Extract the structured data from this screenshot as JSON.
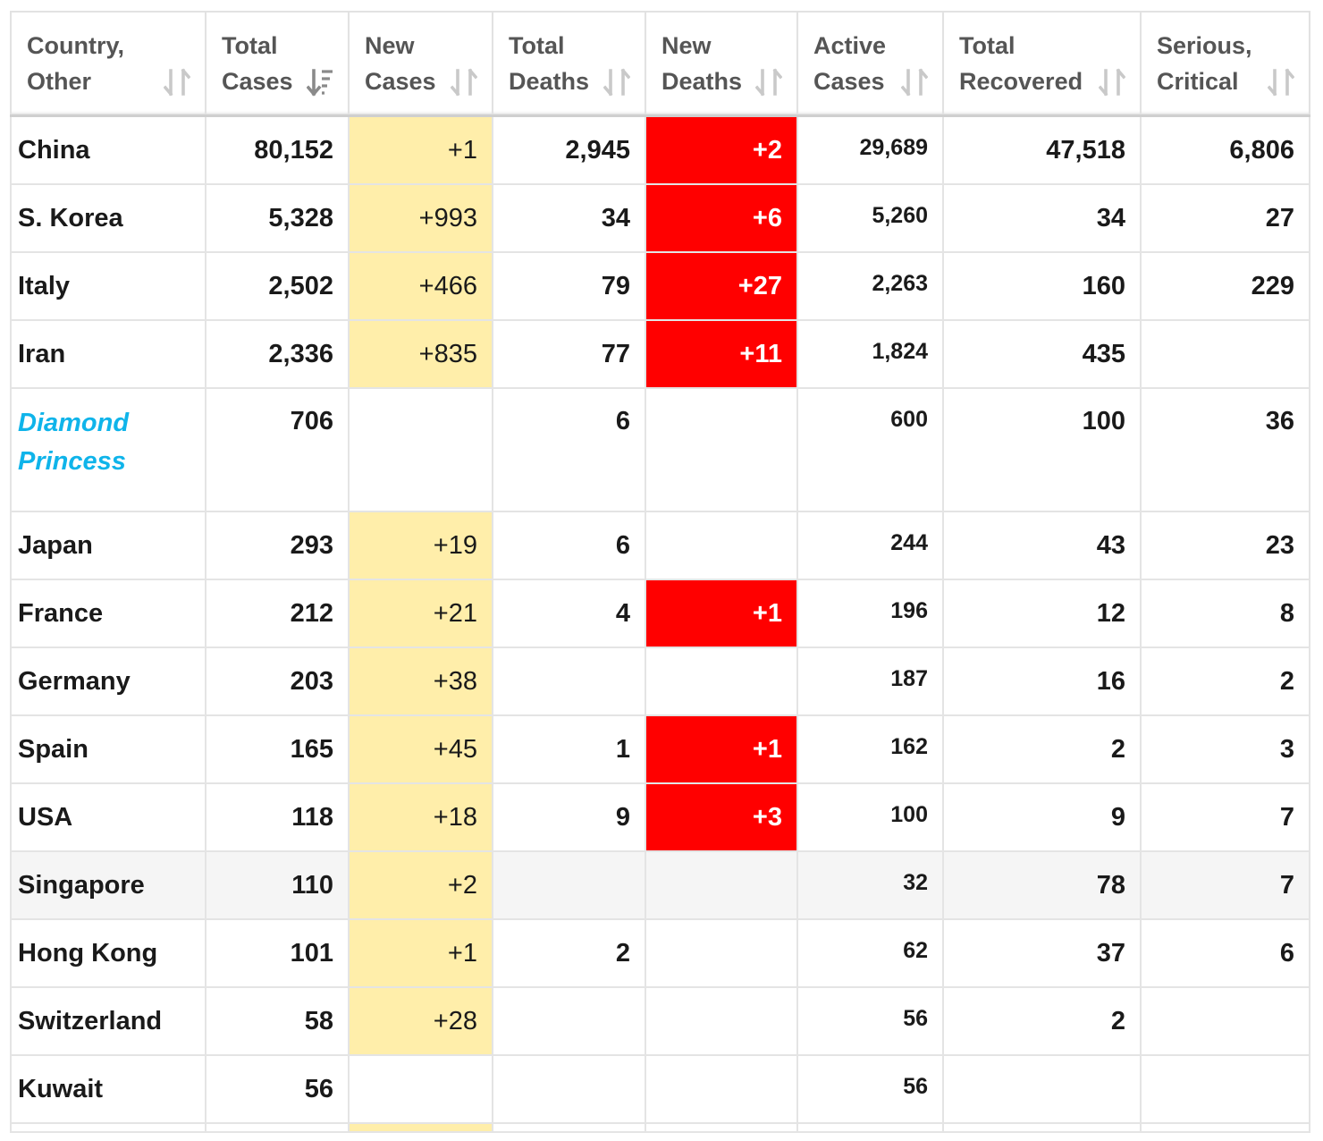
{
  "headers": [
    {
      "line1": "Country,",
      "line2": "Other",
      "icon": "sort-icon",
      "active": false
    },
    {
      "line1": "Total",
      "line2": "Cases",
      "icon": "sort-desc-icon",
      "active": true
    },
    {
      "line1": "New",
      "line2": "Cases",
      "icon": "sort-icon",
      "active": false
    },
    {
      "line1": "Total",
      "line2": "Deaths",
      "icon": "sort-icon",
      "active": false
    },
    {
      "line1": "New",
      "line2": "Deaths",
      "icon": "sort-icon",
      "active": false
    },
    {
      "line1": "Active",
      "line2": "Cases",
      "icon": "sort-icon",
      "active": false
    },
    {
      "line1": "Total",
      "line2": "Recovered",
      "icon": "sort-icon",
      "active": false
    },
    {
      "line1": "Serious,",
      "line2": "Critical",
      "icon": "sort-icon",
      "active": false
    }
  ],
  "colors": {
    "new_cases_bg": "#ffeeaa",
    "new_deaths_bg": "#ff0000",
    "link_color": "#0fb4ea",
    "highlight_row_bg": "#f5f5f5"
  },
  "rows": [
    {
      "country": "China",
      "total_cases": "80,152",
      "new_cases": "+1",
      "total_deaths": "2,945",
      "new_deaths": "+2",
      "active_cases": "29,689",
      "total_recovered": "47,518",
      "serious_critical": "6,806"
    },
    {
      "country": "S. Korea",
      "total_cases": "5,328",
      "new_cases": "+993",
      "total_deaths": "34",
      "new_deaths": "+6",
      "active_cases": "5,260",
      "total_recovered": "34",
      "serious_critical": "27"
    },
    {
      "country": "Italy",
      "total_cases": "2,502",
      "new_cases": "+466",
      "total_deaths": "79",
      "new_deaths": "+27",
      "active_cases": "2,263",
      "total_recovered": "160",
      "serious_critical": "229"
    },
    {
      "country": "Iran",
      "total_cases": "2,336",
      "new_cases": "+835",
      "total_deaths": "77",
      "new_deaths": "+11",
      "active_cases": "1,824",
      "total_recovered": "435",
      "serious_critical": ""
    },
    {
      "country": "Diamond Princess",
      "total_cases": "706",
      "new_cases": "",
      "total_deaths": "6",
      "new_deaths": "",
      "active_cases": "600",
      "total_recovered": "100",
      "serious_critical": "36",
      "is_link": true,
      "tall": true
    },
    {
      "country": "Japan",
      "total_cases": "293",
      "new_cases": "+19",
      "total_deaths": "6",
      "new_deaths": "",
      "active_cases": "244",
      "total_recovered": "43",
      "serious_critical": "23"
    },
    {
      "country": "France",
      "total_cases": "212",
      "new_cases": "+21",
      "total_deaths": "4",
      "new_deaths": "+1",
      "active_cases": "196",
      "total_recovered": "12",
      "serious_critical": "8"
    },
    {
      "country": "Germany",
      "total_cases": "203",
      "new_cases": "+38",
      "total_deaths": "",
      "new_deaths": "",
      "active_cases": "187",
      "total_recovered": "16",
      "serious_critical": "2"
    },
    {
      "country": "Spain",
      "total_cases": "165",
      "new_cases": "+45",
      "total_deaths": "1",
      "new_deaths": "+1",
      "active_cases": "162",
      "total_recovered": "2",
      "serious_critical": "3"
    },
    {
      "country": "USA",
      "total_cases": "118",
      "new_cases": "+18",
      "total_deaths": "9",
      "new_deaths": "+3",
      "active_cases": "100",
      "total_recovered": "9",
      "serious_critical": "7"
    },
    {
      "country": "Singapore",
      "total_cases": "110",
      "new_cases": "+2",
      "total_deaths": "",
      "new_deaths": "",
      "active_cases": "32",
      "total_recovered": "78",
      "serious_critical": "7",
      "highlight": true
    },
    {
      "country": "Hong Kong",
      "total_cases": "101",
      "new_cases": "+1",
      "total_deaths": "2",
      "new_deaths": "",
      "active_cases": "62",
      "total_recovered": "37",
      "serious_critical": "6"
    },
    {
      "country": "Switzerland",
      "total_cases": "58",
      "new_cases": "+28",
      "total_deaths": "",
      "new_deaths": "",
      "active_cases": "56",
      "total_recovered": "2",
      "serious_critical": ""
    },
    {
      "country": "Kuwait",
      "total_cases": "56",
      "new_cases": "",
      "total_deaths": "",
      "new_deaths": "",
      "active_cases": "56",
      "total_recovered": "",
      "serious_critical": ""
    }
  ]
}
